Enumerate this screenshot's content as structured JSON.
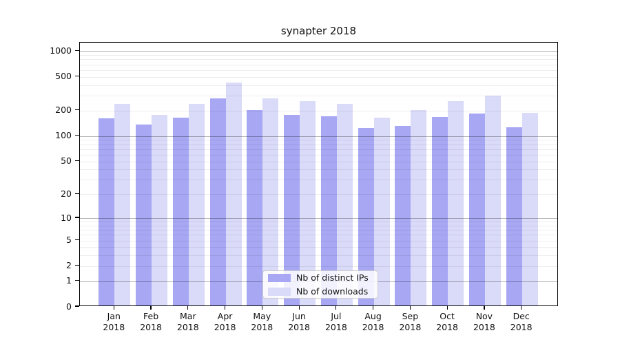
{
  "title": "synapter 2018",
  "legend": {
    "items": [
      {
        "key": "ips",
        "label": "Nb of distinct IPs",
        "color": "#a7a7f3"
      },
      {
        "key": "downloads",
        "label": "Nb of downloads",
        "color": "#dadaf9"
      }
    ]
  },
  "colors": {
    "bar_ips": "#a7a7f3",
    "bar_downloads": "#dadaf9",
    "grid_major": "rgba(0,0,0,0.28)",
    "grid_minor": "rgba(0,0,0,0.065)",
    "spine": "#000000",
    "text": "#111111"
  },
  "chart_data": {
    "type": "bar",
    "title": "synapter 2018",
    "scale": "log1p",
    "categories": [
      "Jan 2018",
      "Feb 2018",
      "Mar 2018",
      "Apr 2018",
      "May 2018",
      "Jun 2018",
      "Jul 2018",
      "Aug 2018",
      "Sep 2018",
      "Oct 2018",
      "Nov 2018",
      "Dec 2018"
    ],
    "series": [
      {
        "name": "Nb of distinct IPs",
        "values": [
          155,
          132,
          160,
          267,
          195,
          170,
          165,
          121,
          127,
          161,
          178,
          122
        ]
      },
      {
        "name": "Nb of downloads",
        "values": [
          230,
          170,
          232,
          415,
          270,
          250,
          230,
          160,
          197,
          247,
          289,
          180
        ]
      }
    ],
    "y_ticks": [
      0,
      1,
      2,
      5,
      10,
      20,
      50,
      100,
      200,
      500,
      1000
    ],
    "ylim": [
      0,
      1250
    ],
    "xlabel": "",
    "ylabel": "",
    "grid": true,
    "grid_above_bars": true,
    "legend_position": "lower center"
  }
}
